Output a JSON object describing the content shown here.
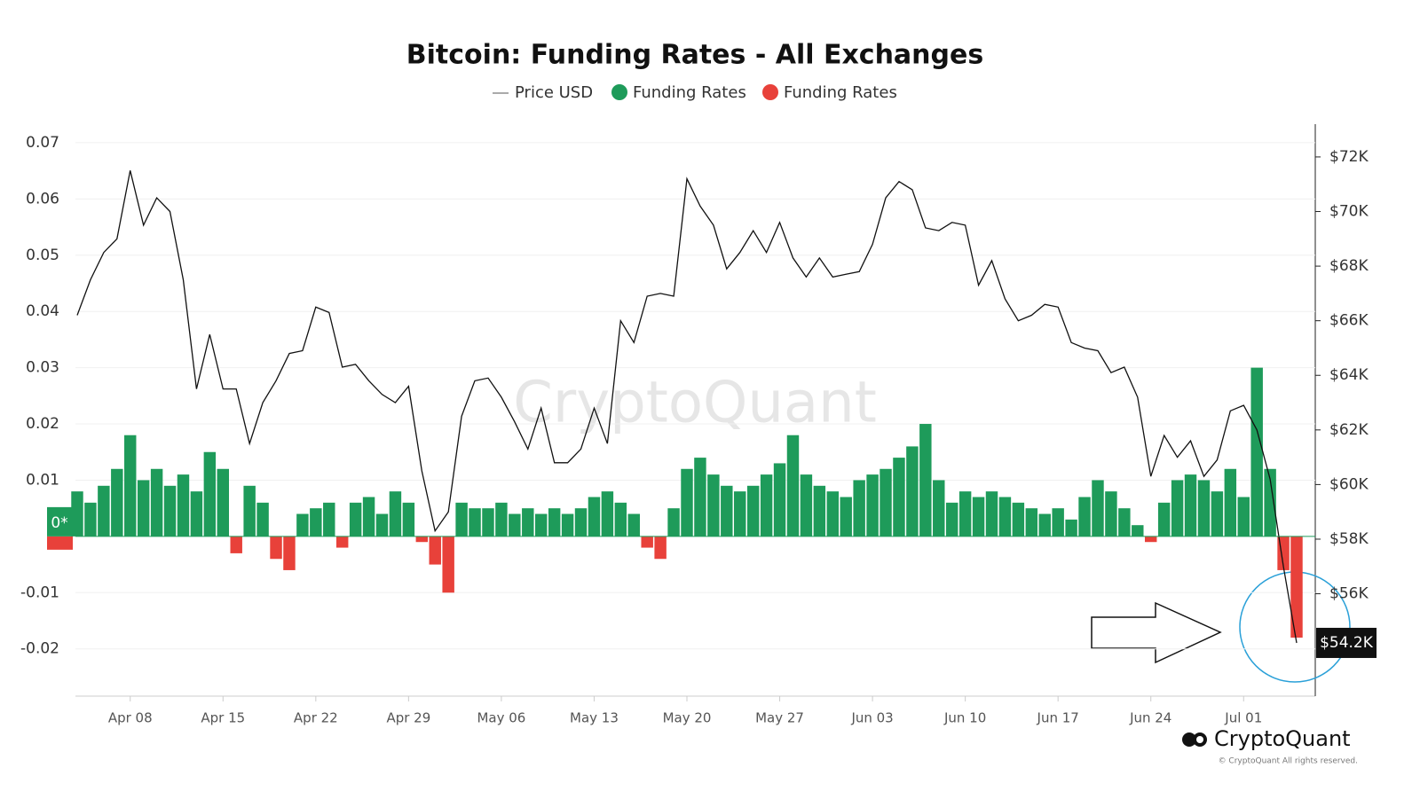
{
  "chart_data": {
    "type": "bar",
    "title": "Bitcoin: Funding Rates - All Exchanges",
    "categories": [
      null,
      null,
      null,
      null,
      "Apr 08",
      null,
      null,
      null,
      null,
      null,
      null,
      "Apr 15",
      null,
      null,
      null,
      null,
      null,
      null,
      "Apr 22",
      null,
      null,
      null,
      null,
      null,
      null,
      "Apr 29",
      null,
      null,
      null,
      null,
      null,
      null,
      "May 06",
      null,
      null,
      null,
      null,
      null,
      null,
      "May 13",
      null,
      null,
      null,
      null,
      null,
      null,
      "May 20",
      null,
      null,
      null,
      null,
      null,
      null,
      "May 27",
      null,
      null,
      null,
      null,
      null,
      null,
      "Jun 03",
      null,
      null,
      null,
      null,
      null,
      null,
      "Jun 10",
      null,
      null,
      null,
      null,
      null,
      null,
      "Jun 17",
      null,
      null,
      null,
      null,
      null,
      null,
      "Jun 24",
      null,
      null,
      null,
      null,
      null,
      null,
      "Jul 01",
      null,
      null,
      null,
      null
    ],
    "series": [
      {
        "name": "Price USD",
        "type": "line",
        "axis": "y2",
        "color": "#111111",
        "values": [
          66200,
          67500,
          68500,
          69000,
          71500,
          69500,
          70500,
          70000,
          67500,
          63500,
          65500,
          63500,
          63500,
          61500,
          63000,
          63800,
          64800,
          64900,
          66500,
          66300,
          64300,
          64400,
          63800,
          63300,
          63000,
          63600,
          60500,
          58300,
          59000,
          62500,
          63800,
          63900,
          63200,
          62300,
          61300,
          62800,
          60800,
          60800,
          61300,
          62800,
          61500,
          66000,
          65200,
          66900,
          67000,
          66900,
          71200,
          70200,
          69500,
          67900,
          68500,
          69300,
          68500,
          69600,
          68300,
          67600,
          68300,
          67600,
          67700,
          67800,
          68800,
          70500,
          71100,
          70800,
          69400,
          69300,
          69600,
          69500,
          67300,
          68200,
          66800,
          66000,
          66200,
          66600,
          66500,
          65200,
          65000,
          64900,
          64100,
          64300,
          63200,
          60300,
          61800,
          61000,
          61600,
          60300,
          60900,
          62700,
          62900,
          62000,
          60200,
          57000,
          54200
        ]
      },
      {
        "name": "Funding Rates",
        "type": "bar",
        "color": "#1e9b5a",
        "values": [
          0.008,
          0.006,
          0.009,
          0.012,
          0.018,
          0.01,
          0.012,
          0.009,
          0.011,
          0.008,
          0.015,
          0.012,
          null,
          0.009,
          0.006,
          null,
          null,
          0.004,
          0.005,
          0.006,
          null,
          0.006,
          0.007,
          0.004,
          0.008,
          0.006,
          null,
          null,
          null,
          0.006,
          0.005,
          0.005,
          0.006,
          0.004,
          0.005,
          0.004,
          0.005,
          0.004,
          0.005,
          0.007,
          0.008,
          0.006,
          0.004,
          null,
          null,
          0.005,
          0.012,
          0.014,
          0.011,
          0.009,
          0.008,
          0.009,
          0.011,
          0.013,
          0.018,
          0.011,
          0.009,
          0.008,
          0.007,
          0.01,
          0.011,
          0.012,
          0.014,
          0.016,
          0.02,
          0.01,
          0.006,
          0.008,
          0.007,
          0.008,
          0.007,
          0.006,
          0.005,
          0.004,
          0.005,
          0.003,
          0.007,
          0.01,
          0.008,
          0.005,
          0.002,
          null,
          0.006,
          0.01,
          0.011,
          0.01,
          0.008,
          0.012,
          0.007,
          0.03,
          0.012,
          null,
          null
        ]
      },
      {
        "name": "Funding Rates",
        "type": "bar",
        "color": "#e8413a",
        "values": [
          null,
          null,
          null,
          null,
          null,
          null,
          null,
          null,
          null,
          null,
          null,
          null,
          -0.003,
          null,
          null,
          -0.004,
          -0.006,
          null,
          null,
          null,
          -0.002,
          null,
          null,
          null,
          null,
          null,
          -0.001,
          -0.005,
          -0.01,
          null,
          null,
          null,
          null,
          null,
          null,
          null,
          null,
          null,
          null,
          null,
          null,
          null,
          null,
          -0.002,
          -0.004,
          null,
          null,
          null,
          null,
          null,
          null,
          null,
          null,
          null,
          null,
          null,
          null,
          null,
          null,
          null,
          null,
          null,
          null,
          null,
          null,
          null,
          null,
          null,
          null,
          null,
          null,
          null,
          null,
          null,
          null,
          null,
          null,
          null,
          null,
          null,
          null,
          -0.001,
          null,
          null,
          null,
          null,
          null,
          null,
          null,
          null,
          null,
          -0.006,
          -0.018
        ]
      }
    ],
    "ylim": [
      -0.0284,
      0.0733
    ],
    "yticks": [
      -0.02,
      -0.01,
      0.01,
      0.02,
      0.03,
      0.04,
      0.05,
      0.06,
      0.07
    ],
    "y2lim": [
      52250,
      73200
    ],
    "y2ticks": [
      {
        "value": 56000,
        "label": "$56K"
      },
      {
        "value": 58000,
        "label": "$58K"
      },
      {
        "value": 60000,
        "label": "$60K"
      },
      {
        "value": 62000,
        "label": "$62K"
      },
      {
        "value": 64000,
        "label": "$64K"
      },
      {
        "value": 66000,
        "label": "$66K"
      },
      {
        "value": 68000,
        "label": "$68K"
      },
      {
        "value": 70000,
        "label": "$70K"
      },
      {
        "value": 72000,
        "label": "$72K"
      }
    ],
    "grid": true,
    "zero_label": "0*",
    "last_price": {
      "value": 54200,
      "label": "$54.2K"
    },
    "watermark": "CryptoQuant",
    "brand": "CryptoQuant",
    "copyright": "© CryptoQuant All rights reserved."
  }
}
